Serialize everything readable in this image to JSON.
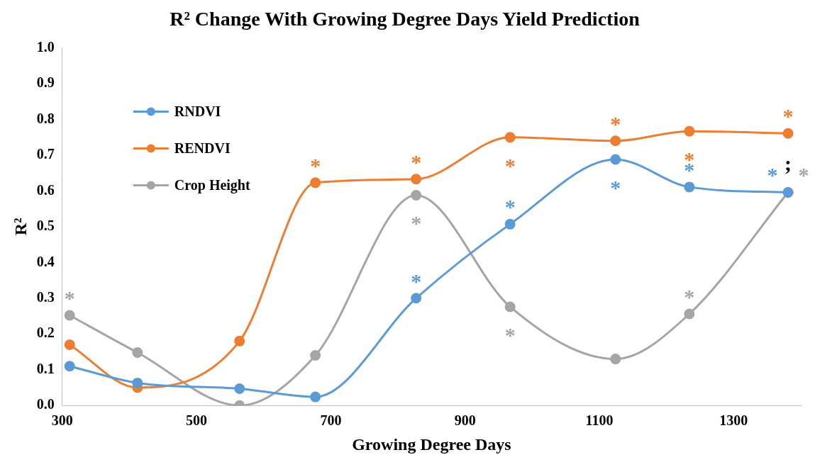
{
  "chart_data": {
    "type": "line",
    "title": "R² Change With Growing Degree Days Yield Prediction",
    "xlabel": "Growing Degree Days",
    "ylabel": "R²",
    "x": [
      311,
      412,
      564,
      677,
      827,
      967,
      1124,
      1234,
      1381
    ],
    "series": [
      {
        "name": "RNDVI",
        "color": "#5b9bd5",
        "values": [
          0.11,
          0.063,
          0.047,
          0.024,
          0.3,
          0.507,
          0.688,
          0.611,
          0.596
        ],
        "value_labels": [
          null,
          null,
          null,
          null,
          "*",
          "*",
          "*",
          "*",
          "*"
        ]
      },
      {
        "name": "RENDVI",
        "color": "#ed7d31",
        "values": [
          0.17,
          0.05,
          0.18,
          0.623,
          0.633,
          0.75,
          0.74,
          0.767,
          0.761
        ],
        "value_labels": [
          null,
          null,
          null,
          "*",
          "*",
          "*",
          "*",
          "*",
          "*"
        ]
      },
      {
        "name": "Crop Height",
        "color": "#a5a5a5",
        "values": [
          0.252,
          0.148,
          0,
          0.14,
          0.588,
          0.276,
          0.13,
          0.256,
          0.596
        ],
        "value_labels": [
          "*",
          null,
          null,
          null,
          "*",
          "*",
          null,
          "*",
          "*"
        ]
      }
    ],
    "xlim": [
      300,
      1400
    ],
    "xticks": [
      300,
      500,
      700,
      900,
      1100,
      1300
    ],
    "ylim": [
      0,
      1
    ],
    "yticks": [
      {
        "value": 0,
        "label": "0.0"
      },
      0.1,
      0.2,
      0.3,
      0.4,
      0.5,
      0.6,
      0.7,
      0.8,
      0.9,
      {
        "value": 1,
        "label": "1.0"
      }
    ],
    "grid": false,
    "legend": "top left",
    "marker": "circle",
    "line_style": "solid",
    "annotations": [
      {
        "text": ";",
        "x": 1381,
        "y": 0.596
      }
    ]
  }
}
